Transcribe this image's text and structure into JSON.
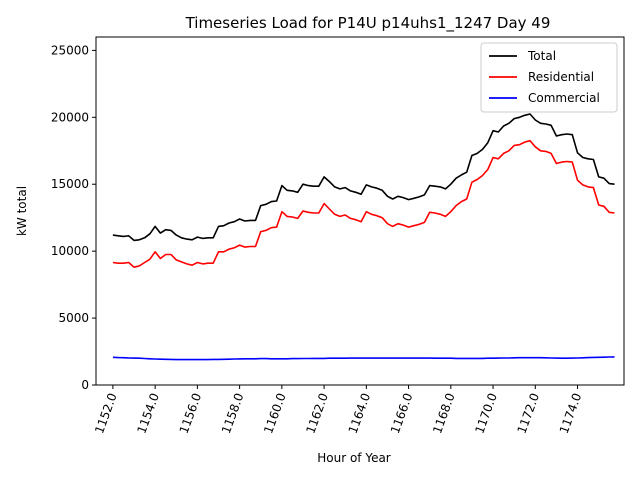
{
  "chart_data": {
    "type": "line",
    "title": "Timeseries Load for P14U p14uhs1_1247  Day 49",
    "xlabel": "Hour of Year",
    "ylabel": "kW total",
    "xlim": [
      1151.2,
      1176.2
    ],
    "ylim": [
      0,
      26000
    ],
    "xticks": [
      1152,
      1154,
      1156,
      1158,
      1160,
      1162,
      1164,
      1166,
      1168,
      1170,
      1172,
      1174
    ],
    "xtick_labels": [
      "1152.0",
      "1154.0",
      "1156.0",
      "1158.0",
      "1160.0",
      "1162.0",
      "1164.0",
      "1166.0",
      "1168.0",
      "1170.0",
      "1172.0",
      "1174.0"
    ],
    "yticks": [
      0,
      5000,
      10000,
      15000,
      20000,
      25000
    ],
    "ytick_labels": [
      "0",
      "5000",
      "10000",
      "15000",
      "20000",
      "25000"
    ],
    "legend_position": "top-right",
    "x_start": 1152,
    "x_step": 0.25,
    "series": [
      {
        "name": "Total",
        "color": "#000000",
        "values": [
          11200,
          11150,
          11100,
          11150,
          10800,
          10850,
          11000,
          11300,
          11850,
          11350,
          11600,
          11550,
          11200,
          11000,
          10900,
          10850,
          11050,
          10950,
          11000,
          11000,
          11850,
          11900,
          12100,
          12200,
          12400,
          12250,
          12300,
          12300,
          13400,
          13500,
          13700,
          13750,
          14900,
          14550,
          14500,
          14400,
          15000,
          14900,
          14850,
          14850,
          15550,
          15200,
          14800,
          14650,
          14750,
          14500,
          14400,
          14250,
          14950,
          14800,
          14700,
          14550,
          14100,
          13900,
          14100,
          14000,
          13850,
          13950,
          14050,
          14200,
          14900,
          14850,
          14800,
          14650,
          15000,
          15450,
          15700,
          15900,
          17150,
          17300,
          17600,
          18100,
          19000,
          18900,
          19350,
          19550,
          19900,
          20000,
          20150,
          20250,
          19800,
          19550,
          19500,
          19400,
          18600,
          18700,
          18750,
          18700,
          17350,
          17000,
          16900,
          16850,
          15550,
          15450,
          15050,
          15000
        ]
      },
      {
        "name": "Residential",
        "color": "#ff0000",
        "values": [
          9150,
          9100,
          9100,
          9150,
          8800,
          8900,
          9150,
          9400,
          9950,
          9450,
          9750,
          9750,
          9350,
          9200,
          9050,
          8950,
          9150,
          9050,
          9100,
          9100,
          9950,
          9950,
          10150,
          10250,
          10450,
          10300,
          10350,
          10350,
          11450,
          11550,
          11750,
          11800,
          12950,
          12600,
          12550,
          12450,
          13000,
          12900,
          12850,
          12850,
          13550,
          13150,
          12750,
          12600,
          12700,
          12450,
          12350,
          12200,
          12950,
          12750,
          12650,
          12500,
          12050,
          11850,
          12050,
          11950,
          11800,
          11900,
          12000,
          12150,
          12900,
          12850,
          12750,
          12600,
          12950,
          13400,
          13700,
          13900,
          15150,
          15350,
          15650,
          16100,
          17000,
          16900,
          17300,
          17500,
          17900,
          17950,
          18150,
          18250,
          17800,
          17500,
          17450,
          17300,
          16550,
          16650,
          16700,
          16650,
          15300,
          14950,
          14800,
          14750,
          13450,
          13350,
          12900,
          12850
        ]
      },
      {
        "name": "Commercial",
        "color": "#0000ff",
        "values": [
          2070,
          2050,
          2040,
          2020,
          2010,
          2000,
          1980,
          1960,
          1940,
          1930,
          1920,
          1910,
          1900,
          1900,
          1900,
          1900,
          1900,
          1900,
          1900,
          1910,
          1910,
          1920,
          1930,
          1940,
          1950,
          1960,
          1960,
          1960,
          1970,
          1970,
          1960,
          1960,
          1960,
          1960,
          1970,
          1970,
          1980,
          1980,
          1990,
          1990,
          1990,
          2000,
          2000,
          2000,
          2000,
          2010,
          2010,
          2010,
          2010,
          2010,
          2010,
          2010,
          2010,
          2010,
          2010,
          2010,
          2010,
          2010,
          2010,
          2010,
          2010,
          2000,
          2000,
          2000,
          2000,
          1990,
          1990,
          1990,
          1990,
          1990,
          1990,
          2000,
          2000,
          2010,
          2020,
          2020,
          2030,
          2040,
          2040,
          2040,
          2040,
          2040,
          2030,
          2020,
          2010,
          2000,
          2000,
          2010,
          2020,
          2030,
          2050,
          2060,
          2070,
          2080,
          2090,
          2100
        ]
      }
    ]
  }
}
